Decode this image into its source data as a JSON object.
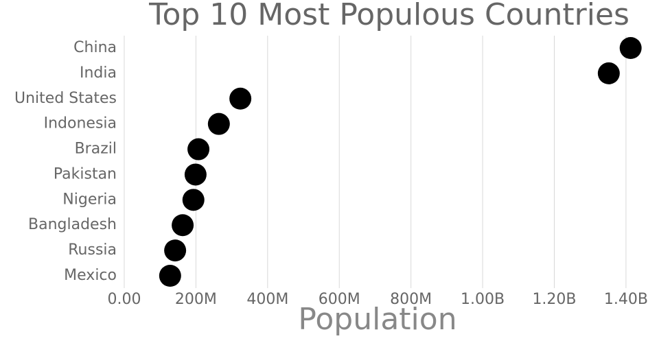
{
  "chart_data": {
    "type": "dot",
    "title": "Top 10 Most Populous Countries",
    "x_label": "Population",
    "categories": [
      "China",
      "India",
      "United States",
      "Indonesia",
      "Brazil",
      "Pakistan",
      "Nigeria",
      "Bangladesh",
      "Russia",
      "Mexico"
    ],
    "values": [
      1413000000,
      1352000000,
      324000000,
      264000000,
      207000000,
      199000000,
      193000000,
      163000000,
      142000000,
      128000000
    ],
    "color": "#000000",
    "xlim": [
      0,
      1450000000
    ],
    "xticks": [
      {
        "value": 0,
        "label": "0.00"
      },
      {
        "value": 200000000,
        "label": "200M"
      },
      {
        "value": 400000000,
        "label": "400M"
      },
      {
        "value": 600000000,
        "label": "600M"
      },
      {
        "value": 800000000,
        "label": "800M"
      },
      {
        "value": 1000000000,
        "label": "1.00B"
      },
      {
        "value": 1200000000,
        "label": "1.20B"
      },
      {
        "value": 1400000000,
        "label": "1.40B"
      }
    ],
    "grid": true
  }
}
